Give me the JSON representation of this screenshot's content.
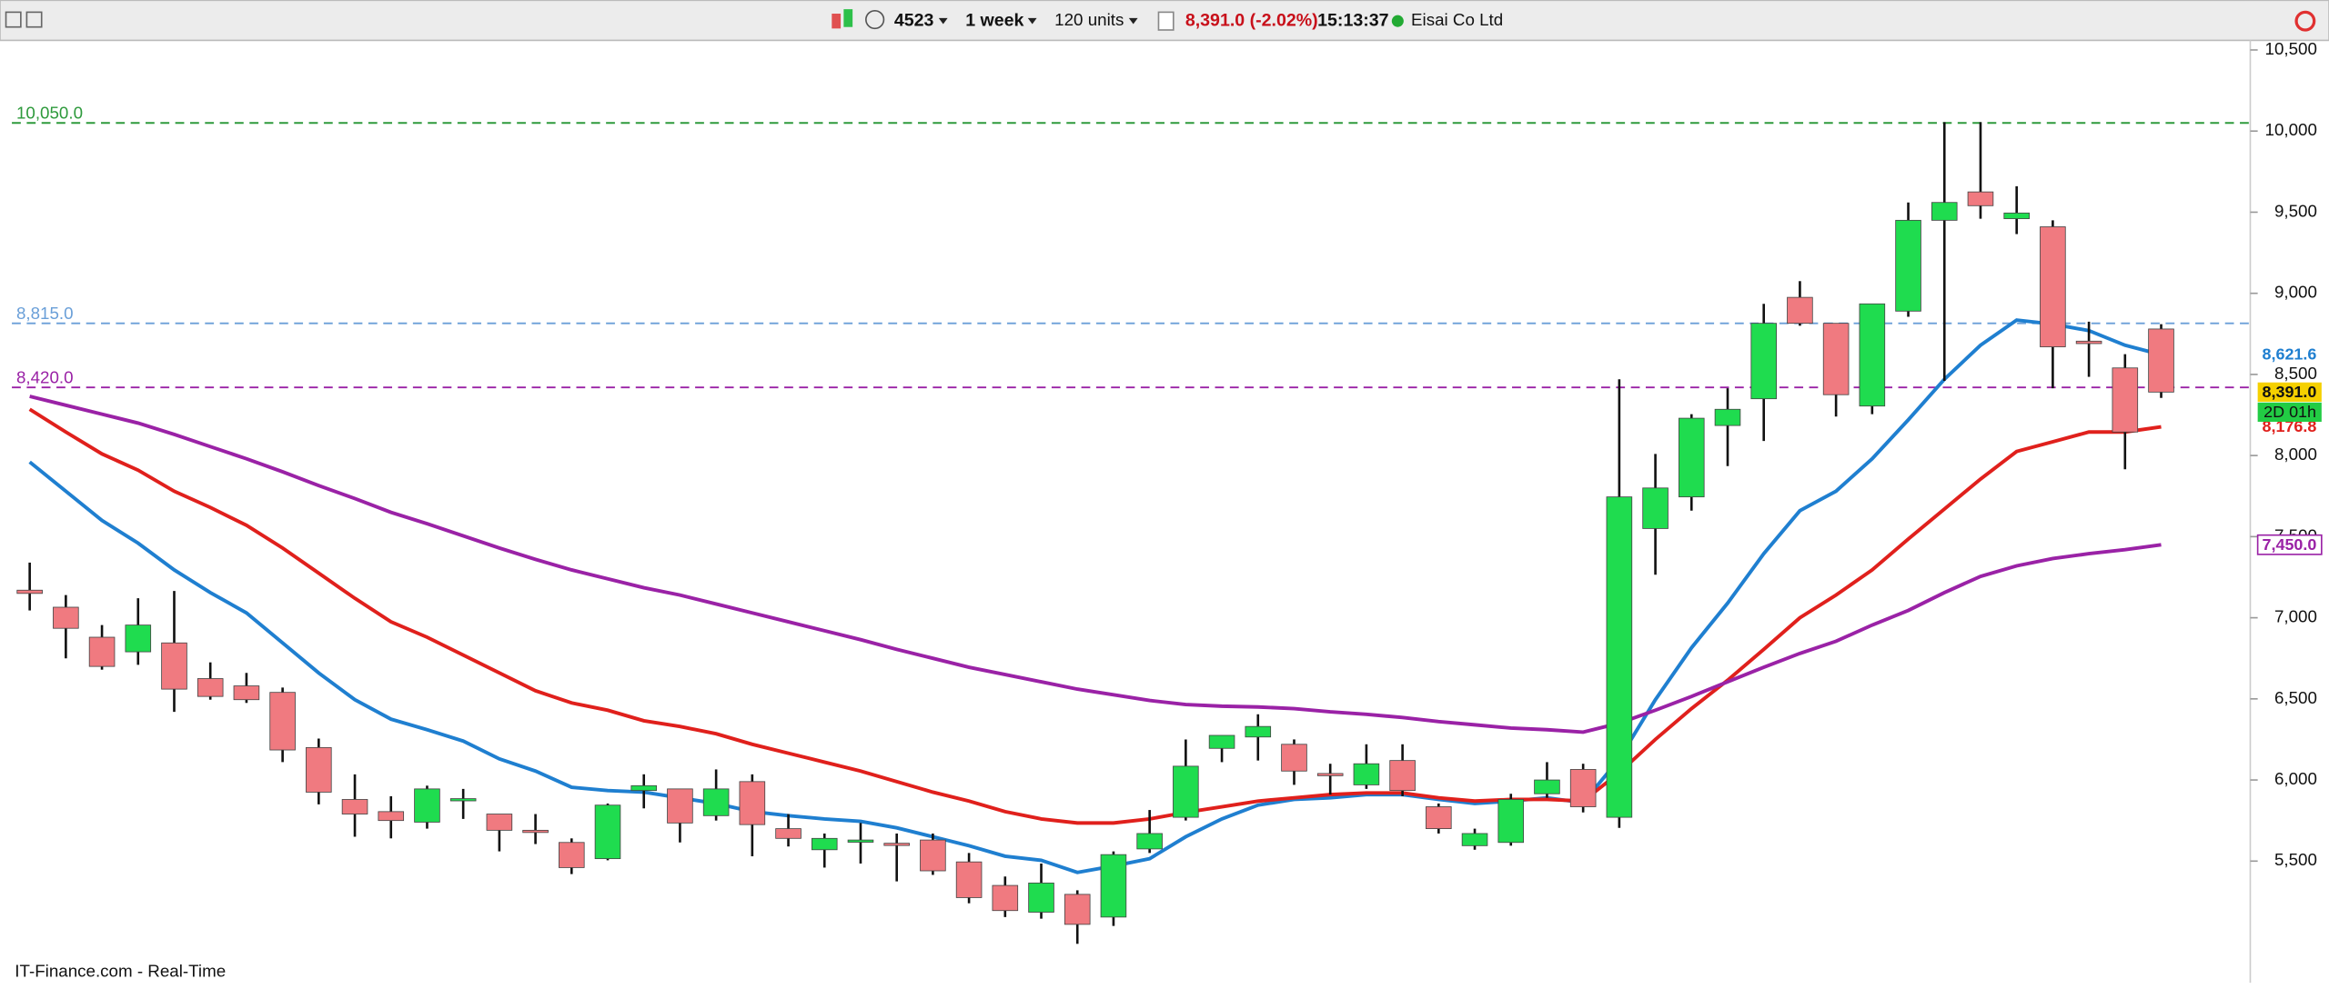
{
  "toolbar": {
    "symbol": "4523",
    "period": "1 week",
    "units": "120 units",
    "price": "8,391.0 (-2.02%)",
    "time": "15:13:37",
    "name": "Eisai Co Ltd"
  },
  "footer": "IT-Finance.com - Real-Time",
  "chart_data": {
    "type": "candlestick",
    "up_color": "#1fdc4f",
    "down_color": "#f07a80",
    "open": [
      7170,
      7065,
      6880,
      6790,
      6845,
      6625,
      6580,
      6540,
      6200,
      5880,
      5805,
      5740,
      5875,
      5790,
      5690,
      5615,
      5515,
      5935,
      5945,
      5780,
      5990,
      5700,
      5570,
      5620,
      5610,
      5630,
      5495,
      5350,
      5185,
      5295,
      5155,
      5575,
      5770,
      6195,
      6265,
      6220,
      6040,
      5970,
      6120,
      5835,
      5595,
      5615,
      5915,
      6065,
      5770,
      7550,
      7745,
      8185,
      8350,
      8975,
      8815,
      8305,
      8890,
      9450,
      9625,
      9460,
      9410,
      8705,
      8540,
      8780
    ],
    "high": [
      7340,
      7140,
      6955,
      7120,
      7165,
      6725,
      6660,
      6570,
      6255,
      6035,
      5900,
      5965,
      5945,
      5790,
      5790,
      5640,
      5855,
      6035,
      5945,
      6065,
      6035,
      5790,
      5670,
      5735,
      5670,
      5670,
      5550,
      5405,
      5485,
      5320,
      5560,
      5815,
      6250,
      6275,
      6405,
      6250,
      6100,
      6220,
      6220,
      5855,
      5700,
      5915,
      6110,
      6100,
      8470,
      8010,
      8255,
      8415,
      8935,
      9075,
      8815,
      8935,
      9560,
      10055,
      10055,
      9660,
      9450,
      8825,
      8625,
      8810
    ],
    "low": [
      7045,
      6750,
      6680,
      6710,
      6420,
      6495,
      6475,
      6110,
      5850,
      5650,
      5640,
      5700,
      5760,
      5560,
      5605,
      5420,
      5505,
      5825,
      5615,
      5750,
      5530,
      5590,
      5460,
      5485,
      5375,
      5415,
      5240,
      5155,
      5145,
      4990,
      5100,
      5550,
      5750,
      6110,
      6120,
      5970,
      5910,
      5945,
      5900,
      5670,
      5570,
      5595,
      5890,
      5800,
      5705,
      7265,
      7660,
      7935,
      8090,
      8800,
      8240,
      8255,
      8855,
      8460,
      9460,
      9365,
      8415,
      8485,
      7915,
      8355
    ],
    "close": [
      7150,
      6935,
      6700,
      6955,
      6560,
      6515,
      6495,
      6185,
      5925,
      5790,
      5750,
      5945,
      5885,
      5690,
      5680,
      5460,
      5845,
      5965,
      5735,
      5945,
      5725,
      5640,
      5640,
      5630,
      5600,
      5440,
      5275,
      5195,
      5365,
      5110,
      5540,
      5670,
      6085,
      6275,
      6330,
      6055,
      6030,
      6100,
      5935,
      5700,
      5670,
      5880,
      6000,
      5835,
      7745,
      7800,
      8230,
      8285,
      8815,
      8815,
      8375,
      8935,
      9450,
      9560,
      9540,
      9495,
      8670,
      8690,
      8145,
      8391
    ],
    "close_last_label": "8,391.0",
    "countdown": "2D 01h",
    "series": [
      {
        "color": "#1f7fd0",
        "last_label": "8,621.6",
        "values": [
          7960,
          7780,
          7600,
          7460,
          7295,
          7155,
          7030,
          6845,
          6660,
          6495,
          6375,
          6310,
          6240,
          6130,
          6055,
          5955,
          5935,
          5925,
          5890,
          5855,
          5805,
          5780,
          5760,
          5745,
          5705,
          5650,
          5595,
          5530,
          5505,
          5430,
          5470,
          5515,
          5650,
          5760,
          5845,
          5880,
          5890,
          5910,
          5910,
          5880,
          5855,
          5870,
          5890,
          5860,
          6130,
          6495,
          6815,
          7090,
          7395,
          7660,
          7780,
          7980,
          8220,
          8470,
          8680,
          8835,
          8810,
          8770,
          8680,
          8621.6
        ]
      },
      {
        "color": "#e0201c",
        "last_label": "8,176.8",
        "values": [
          8285,
          8145,
          8010,
          7910,
          7780,
          7680,
          7570,
          7430,
          7275,
          7120,
          6975,
          6880,
          6770,
          6660,
          6550,
          6475,
          6430,
          6365,
          6330,
          6285,
          6220,
          6165,
          6110,
          6055,
          5990,
          5925,
          5870,
          5805,
          5760,
          5735,
          5735,
          5760,
          5800,
          5835,
          5870,
          5890,
          5910,
          5920,
          5920,
          5890,
          5870,
          5880,
          5880,
          5870,
          6045,
          6250,
          6440,
          6615,
          6805,
          7000,
          7140,
          7295,
          7485,
          7670,
          7855,
          8025,
          8085,
          8145,
          8145,
          8176.8
        ]
      },
      {
        "color": "#9a22a6",
        "last_label": "7,450.0",
        "values": [
          8365,
          8310,
          8255,
          8200,
          8130,
          8055,
          7980,
          7900,
          7815,
          7735,
          7650,
          7580,
          7505,
          7430,
          7360,
          7295,
          7240,
          7185,
          7140,
          7085,
          7030,
          6975,
          6920,
          6865,
          6805,
          6750,
          6695,
          6650,
          6605,
          6560,
          6525,
          6490,
          6465,
          6455,
          6450,
          6440,
          6420,
          6405,
          6385,
          6360,
          6340,
          6320,
          6310,
          6295,
          6350,
          6430,
          6515,
          6605,
          6695,
          6780,
          6855,
          6955,
          7045,
          7155,
          7255,
          7320,
          7365,
          7395,
          7420,
          7450
        ]
      }
    ],
    "hlines": [
      {
        "value": 10050,
        "label": "10,050.0",
        "color": "#2e9a3c"
      },
      {
        "value": 8815,
        "label": "8,815.0",
        "color": "#6a9fd8"
      },
      {
        "value": 8420,
        "label": "8,420.0",
        "color": "#9a22a6"
      }
    ],
    "ylim": [
      4750,
      10550
    ],
    "yticks": [
      {
        "value": 5500,
        "label": "5,500"
      },
      {
        "value": 6000,
        "label": "6,000"
      },
      {
        "value": 6500,
        "label": "6,500"
      },
      {
        "value": 7000,
        "label": "7,000"
      },
      {
        "value": 7500,
        "label": "7,500"
      },
      {
        "value": 8000,
        "label": "8,000"
      },
      {
        "value": 8500,
        "label": "8,500"
      },
      {
        "value": 9000,
        "label": "9,000"
      },
      {
        "value": 9500,
        "label": "9,500"
      },
      {
        "value": 10000,
        "label": "10,000"
      },
      {
        "value": 10500,
        "label": "10,500"
      }
    ]
  }
}
